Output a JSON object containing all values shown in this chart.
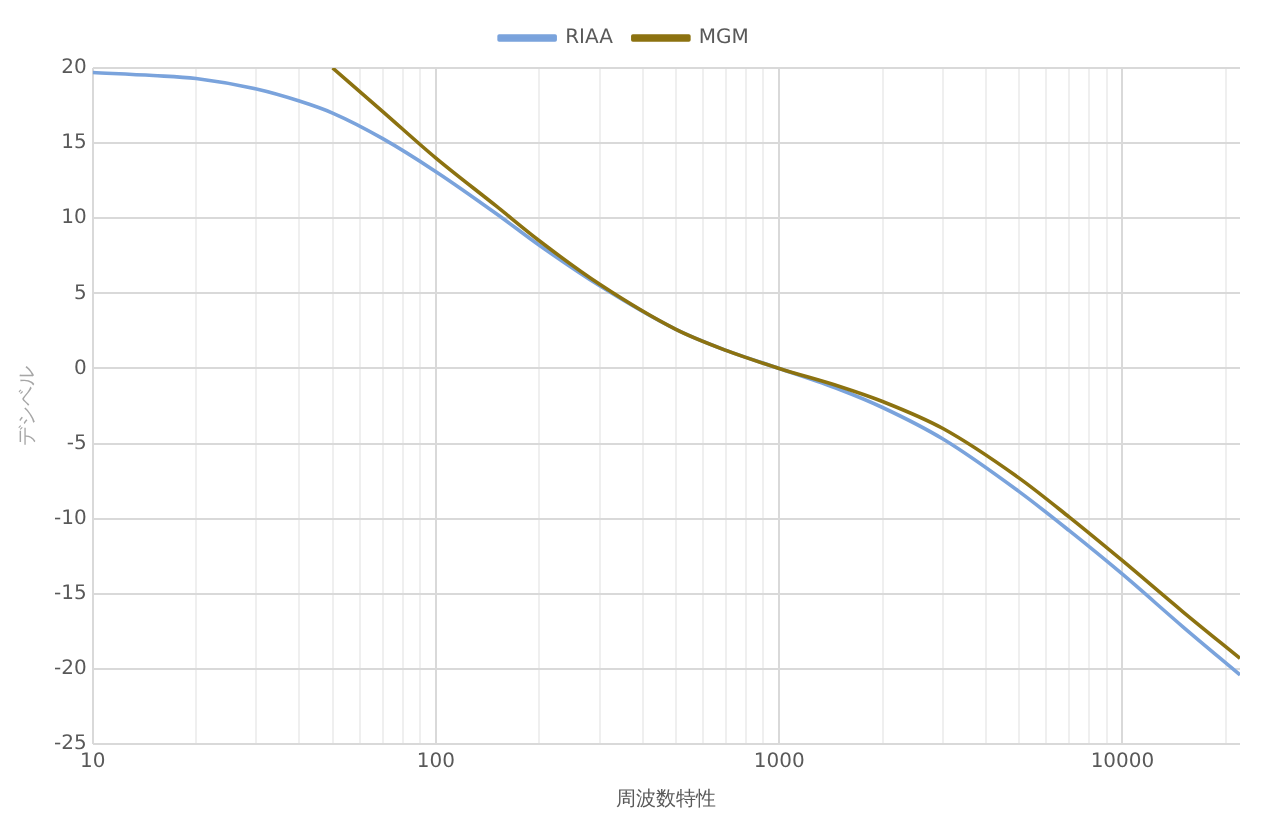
{
  "chart_data": {
    "type": "line",
    "xlabel": "周波数特性",
    "ylabel": "デシベル",
    "log": "x",
    "xlim": [
      10,
      22000
    ],
    "ylim": [
      -25,
      20
    ],
    "xticks": [
      10,
      {
        "value": 20,
        "label": null
      },
      {
        "value": 30,
        "label": null
      },
      {
        "value": 40,
        "label": null
      },
      {
        "value": 50,
        "label": null
      },
      {
        "value": 60,
        "label": null
      },
      {
        "value": 70,
        "label": null
      },
      {
        "value": 80,
        "label": null
      },
      {
        "value": 90,
        "label": null
      },
      100,
      {
        "value": 200,
        "label": null
      },
      {
        "value": 300,
        "label": null
      },
      {
        "value": 400,
        "label": null
      },
      {
        "value": 500,
        "label": null
      },
      {
        "value": 600,
        "label": null
      },
      {
        "value": 700,
        "label": null
      },
      {
        "value": 800,
        "label": null
      },
      {
        "value": 900,
        "label": null
      },
      1000,
      {
        "value": 2000,
        "label": null
      },
      {
        "value": 3000,
        "label": null
      },
      {
        "value": 4000,
        "label": null
      },
      {
        "value": 5000,
        "label": null
      },
      {
        "value": 6000,
        "label": null
      },
      {
        "value": 7000,
        "label": null
      },
      {
        "value": 8000,
        "label": null
      },
      {
        "value": 9000,
        "label": null
      },
      10000,
      {
        "value": 20000,
        "label": null
      }
    ],
    "yticks": [
      -25,
      -20,
      -15,
      -10,
      -5,
      0,
      5,
      10,
      15,
      20
    ],
    "grid": true,
    "legend": "top",
    "marker": "none",
    "line_style": "solid",
    "series": [
      {
        "name": "RIAA",
        "color": "#7aa3dc",
        "x": [
          10,
          15,
          20,
          30,
          40,
          50,
          70,
          100,
          150,
          200,
          300,
          500,
          700,
          1000,
          1500,
          2000,
          3000,
          5000,
          7000,
          10000,
          15000,
          22000
        ],
        "values": [
          19.7,
          19.5,
          19.3,
          18.6,
          17.8,
          17.0,
          15.3,
          13.1,
          10.3,
          8.2,
          5.5,
          2.6,
          1.2,
          0,
          -1.4,
          -2.6,
          -4.7,
          -8.2,
          -10.8,
          -13.7,
          -17.2,
          -20.4
        ]
      },
      {
        "name": "MGM",
        "color": "#8c7210",
        "x": [
          50,
          70,
          100,
          150,
          200,
          300,
          500,
          700,
          1000,
          1500,
          2000,
          3000,
          5000,
          7000,
          10000,
          15000,
          22000
        ],
        "values": [
          20,
          17.1,
          14.0,
          10.8,
          8.5,
          5.6,
          2.6,
          1.2,
          0,
          -1.2,
          -2.2,
          -4.0,
          -7.3,
          -9.9,
          -12.8,
          -16.2,
          -19.3
        ]
      }
    ]
  }
}
